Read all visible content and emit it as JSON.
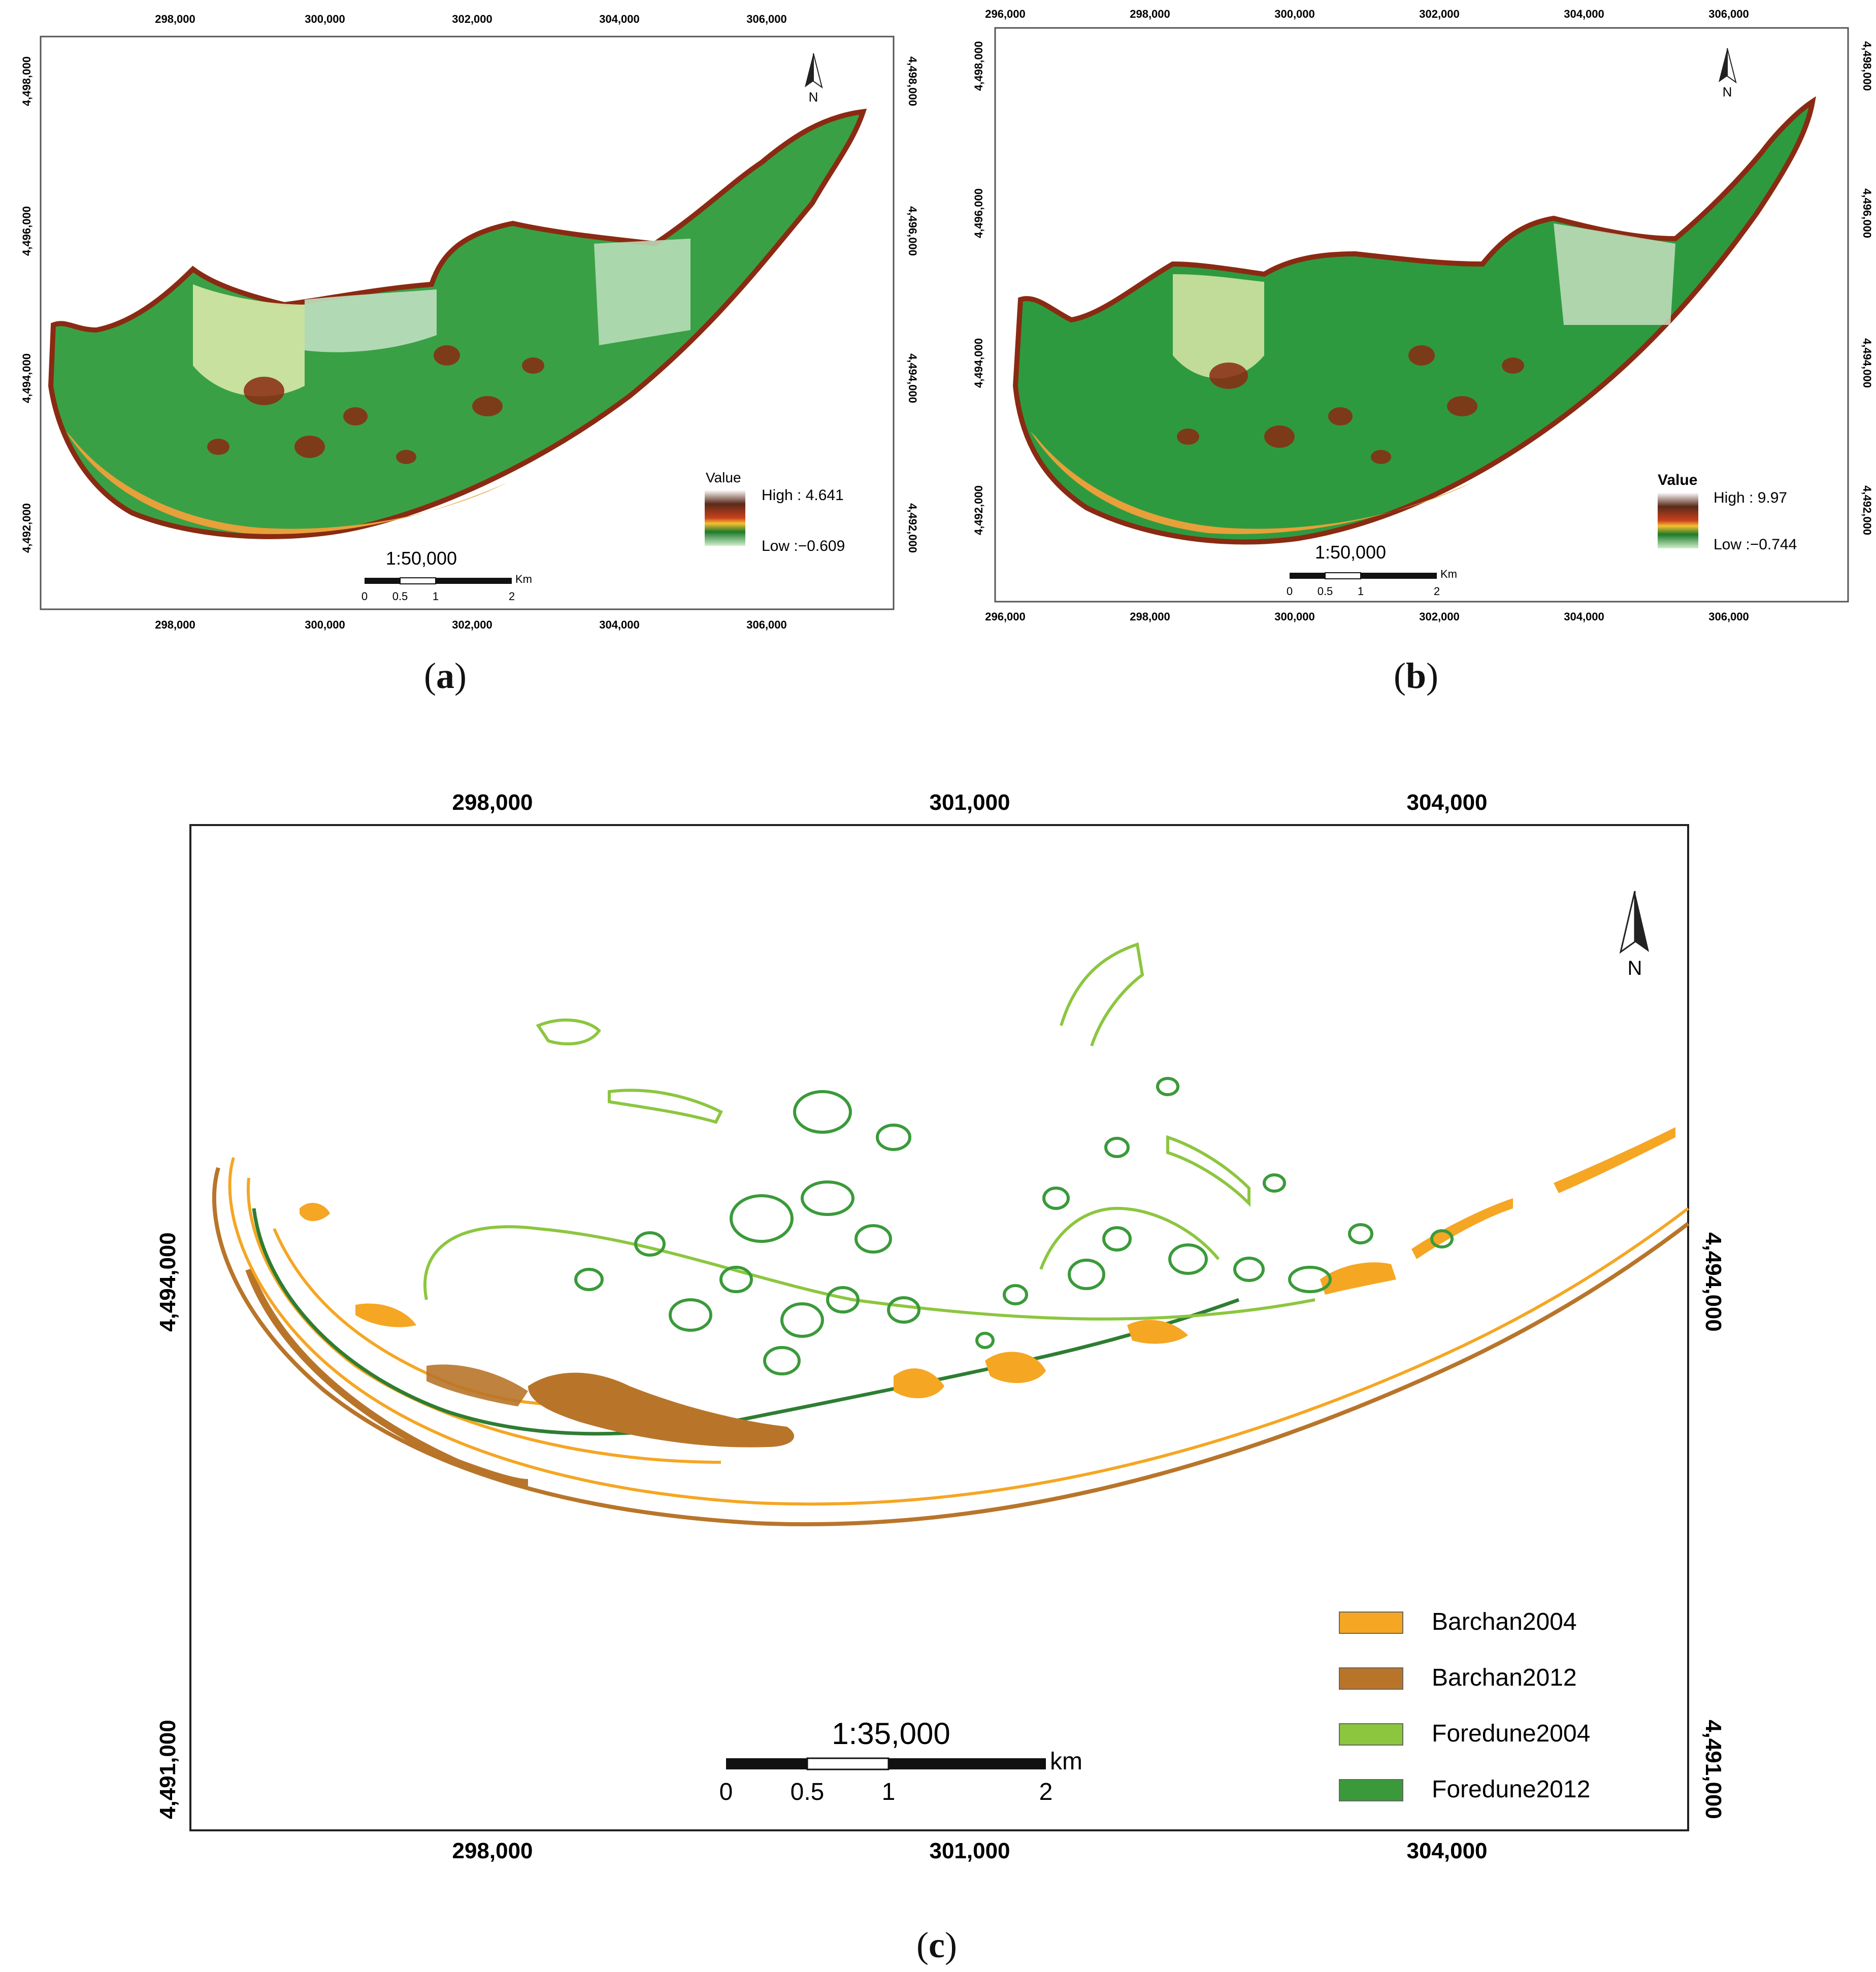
{
  "panel_a": {
    "caption": "a",
    "x_ticks": [
      "298,000",
      "300,000",
      "302,000",
      "304,000",
      "306,000"
    ],
    "y_ticks": [
      "4,498,000",
      "4,496,000",
      "4,494,000",
      "4,492,000"
    ],
    "north": "N",
    "legend": {
      "title": "Value",
      "high": "High : 4.641",
      "low": "Low :−0.609"
    },
    "scale": {
      "ratio": "1:50,000",
      "unit": "Km",
      "labels": [
        "0",
        "0.5",
        "1",
        "2"
      ]
    }
  },
  "panel_b": {
    "caption": "b",
    "x_ticks": [
      "296,000",
      "298,000",
      "300,000",
      "302,000",
      "304,000",
      "306,000"
    ],
    "y_ticks": [
      "4,498,000",
      "4,496,000",
      "4,494,000",
      "4,492,000"
    ],
    "north": "N",
    "legend": {
      "title": "Value",
      "high": "High : 9.97",
      "low": "Low :−0.744"
    },
    "scale": {
      "ratio": "1:50,000",
      "unit": "Km",
      "labels": [
        "0",
        "0.5",
        "1",
        "2"
      ]
    }
  },
  "panel_c": {
    "caption": "c",
    "x_ticks": [
      "298,000",
      "301,000",
      "304,000"
    ],
    "y_ticks": [
      "4,494,000",
      "4,491,000"
    ],
    "north": "N",
    "legend": [
      {
        "label": "Barchan2004",
        "color": "#f5a623"
      },
      {
        "label": "Barchan2012",
        "color": "#b8752a"
      },
      {
        "label": "Foredune2004",
        "color": "#8cc63f"
      },
      {
        "label": "Foredune2012",
        "color": "#3a9a3a"
      }
    ],
    "scale": {
      "ratio": "1:35,000",
      "unit": "km",
      "labels": [
        "0",
        "0.5",
        "1",
        "2"
      ]
    }
  },
  "colors": {
    "ramp_high": "#5a2a1a",
    "ramp_mid": "#b83a1a",
    "ramp_low": "#2f8f3a",
    "map_green": "#3aa046",
    "map_pale": "#cfe3a0"
  }
}
